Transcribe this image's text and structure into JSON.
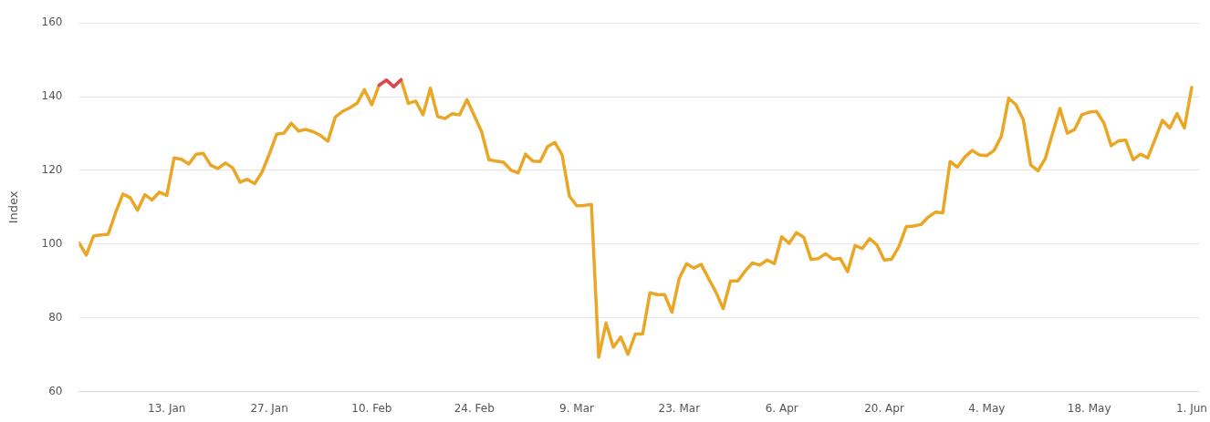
{
  "chart_data": {
    "type": "line",
    "ylabel": "Index",
    "xlim": [
      "--01-01",
      "--06-02"
    ],
    "xticks": [
      {
        "value": "--01-13",
        "label": "13. Jan"
      },
      {
        "value": "--01-27",
        "label": "27. Jan"
      },
      {
        "value": "--02-10",
        "label": "10. Feb"
      },
      {
        "value": "--02-24",
        "label": "24. Feb"
      },
      {
        "value": "--03-09",
        "label": "9. Mar"
      },
      {
        "value": "--03-23",
        "label": "23. Mar"
      },
      {
        "value": "--04-06",
        "label": "6. Apr"
      },
      {
        "value": "--04-20",
        "label": "20. Apr"
      },
      {
        "value": "--05-04",
        "label": "4. May"
      },
      {
        "value": "--05-18",
        "label": "18. May"
      },
      {
        "value": "--06-01",
        "label": "1. Jun"
      }
    ],
    "ylim": [
      60,
      160
    ],
    "yticks": [
      60,
      80,
      100,
      120,
      140,
      160
    ],
    "grid": "y",
    "legend": false,
    "marker": "none",
    "line_style": "solid",
    "series": [
      {
        "color": "#eaa625",
        "x": [
          "--01-01",
          "--01-02",
          "--01-03",
          "--01-04",
          "--01-05",
          "--01-06",
          "--01-07",
          "--01-08",
          "--01-09",
          "--01-10",
          "--01-11",
          "--01-12",
          "--01-13",
          "--01-14",
          "--01-15",
          "--01-16",
          "--01-17",
          "--01-18",
          "--01-19",
          "--01-20",
          "--01-21",
          "--01-22",
          "--01-23",
          "--01-24",
          "--01-25",
          "--01-26",
          "--01-27",
          "--01-28",
          "--01-29",
          "--01-30",
          "--01-31",
          "--02-01",
          "--02-02",
          "--02-03",
          "--02-04",
          "--02-05",
          "--02-06",
          "--02-07",
          "--02-08",
          "--02-09",
          "--02-10",
          "--02-11",
          "--02-12",
          "--02-13",
          "--02-14",
          "--02-15",
          "--02-16",
          "--02-17",
          "--02-18",
          "--02-19",
          "--02-20",
          "--02-21",
          "--02-22",
          "--02-23",
          "--02-24",
          "--02-25",
          "--02-26",
          "--02-27",
          "--02-28",
          "--02-29",
          "--03-01",
          "--03-02",
          "--03-03",
          "--03-04",
          "--03-05",
          "--03-06",
          "--03-07",
          "--03-08",
          "--03-09",
          "--03-10",
          "--03-11",
          "--03-12",
          "--03-13",
          "--03-14",
          "--03-15",
          "--03-16",
          "--03-17",
          "--03-18",
          "--03-19",
          "--03-20",
          "--03-21",
          "--03-22",
          "--03-23",
          "--03-24",
          "--03-25",
          "--03-26",
          "--03-27",
          "--03-28",
          "--03-29",
          "--03-30",
          "--03-31",
          "--04-01",
          "--04-02",
          "--04-03",
          "--04-04",
          "--04-05",
          "--04-06",
          "--04-07",
          "--04-08",
          "--04-09",
          "--04-10",
          "--04-11",
          "--04-12",
          "--04-13",
          "--04-14",
          "--04-15",
          "--04-16",
          "--04-17",
          "--04-18",
          "--04-19",
          "--04-20",
          "--04-21",
          "--04-22",
          "--04-23",
          "--04-24",
          "--04-25",
          "--04-26",
          "--04-27",
          "--04-28",
          "--04-29",
          "--04-30",
          "--05-01",
          "--05-02",
          "--05-03",
          "--05-04",
          "--05-05",
          "--05-06",
          "--05-07",
          "--05-08",
          "--05-09",
          "--05-10",
          "--05-11",
          "--05-12",
          "--05-13",
          "--05-14",
          "--05-15",
          "--05-16",
          "--05-17",
          "--05-18",
          "--05-19",
          "--05-20",
          "--05-21",
          "--05-22",
          "--05-23",
          "--05-24",
          "--05-25",
          "--05-26",
          "--05-27",
          "--05-28",
          "--05-29",
          "--05-30",
          "--05-31",
          "--06-01"
        ],
        "values": [
          100.4,
          97.0,
          102.2,
          102.5,
          102.7,
          108.5,
          113.6,
          112.6,
          109.2,
          113.4,
          112.0,
          114.1,
          113.2,
          123.4,
          123.0,
          121.7,
          124.4,
          124.6,
          121.4,
          120.5,
          122.0,
          120.7,
          116.8,
          117.6,
          116.4,
          119.5,
          124.4,
          129.8,
          130.1,
          132.8,
          130.7,
          131.1,
          130.5,
          129.5,
          127.9,
          134.4,
          136.0,
          137.0,
          138.2,
          141.9,
          137.8,
          143.1,
          144.5,
          142.7,
          144.6,
          138.2,
          138.8,
          135.1,
          142.3,
          134.6,
          134.1,
          135.4,
          135.1,
          139.2,
          134.9,
          130.5,
          122.9,
          122.5,
          122.2,
          120.1,
          119.3,
          124.4,
          122.5,
          122.4,
          126.4,
          127.6,
          124.2,
          113.0,
          110.4,
          110.5,
          110.8,
          69.3,
          78.6,
          72.0,
          74.8,
          70.1,
          75.6,
          75.6,
          86.8,
          86.3,
          86.3,
          81.5,
          90.7,
          94.7,
          93.5,
          94.5,
          90.7,
          87.0,
          82.5,
          90.0,
          90.0,
          92.7,
          94.9,
          94.3,
          95.7,
          94.7,
          102.0,
          100.2,
          103.1,
          101.9,
          95.8,
          96.1,
          97.4,
          95.9,
          96.1,
          92.5,
          99.6,
          98.8,
          101.5,
          99.8,
          95.7,
          95.9,
          99.3,
          104.7,
          104.9,
          105.3,
          107.3,
          108.7,
          108.5,
          122.4,
          120.9,
          123.6,
          125.4,
          124.2,
          124.0,
          125.4,
          129.3,
          139.6,
          137.8,
          133.7,
          121.5,
          119.9,
          123.2,
          130.1,
          136.8,
          130.1,
          131.1,
          135.1,
          135.8,
          136.0,
          132.9,
          126.7,
          128.0,
          128.2,
          122.9,
          124.4,
          123.4,
          128.5,
          133.6,
          131.5,
          135.4,
          131.5,
          142.5
        ]
      },
      {
        "color": "#d9475a",
        "x": [
          "--02-11",
          "--02-12",
          "--02-13",
          "--02-14"
        ],
        "values": [
          143.1,
          144.5,
          142.7,
          144.6
        ]
      }
    ]
  }
}
